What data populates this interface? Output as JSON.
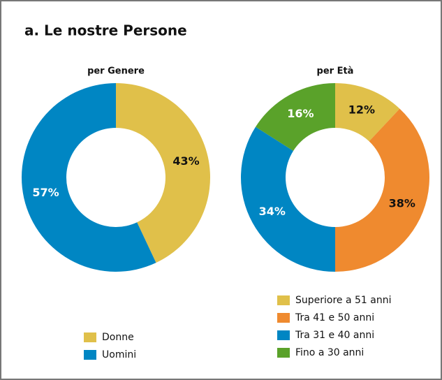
{
  "title": "a. Le nostre Persone",
  "chart_data": [
    {
      "type": "donut",
      "title": "per Genere",
      "categories": [
        "Donne",
        "Uomini"
      ],
      "values": [
        43,
        57
      ],
      "value_labels": [
        "43%",
        "57%"
      ],
      "colors": [
        "#e0c04a",
        "#0086c3"
      ]
    },
    {
      "type": "donut",
      "title": "per Età",
      "categories": [
        "Superiore a 51 anni",
        "Tra 41 e 50 anni",
        "Tra 31 e 40 anni",
        "Fino a 30 anni"
      ],
      "values": [
        12,
        38,
        34,
        16
      ],
      "value_labels": [
        "12%",
        "38%",
        "34%",
        "16%"
      ],
      "colors": [
        "#e0c04a",
        "#ef8a2f",
        "#0086c3",
        "#5aa22a"
      ]
    }
  ]
}
